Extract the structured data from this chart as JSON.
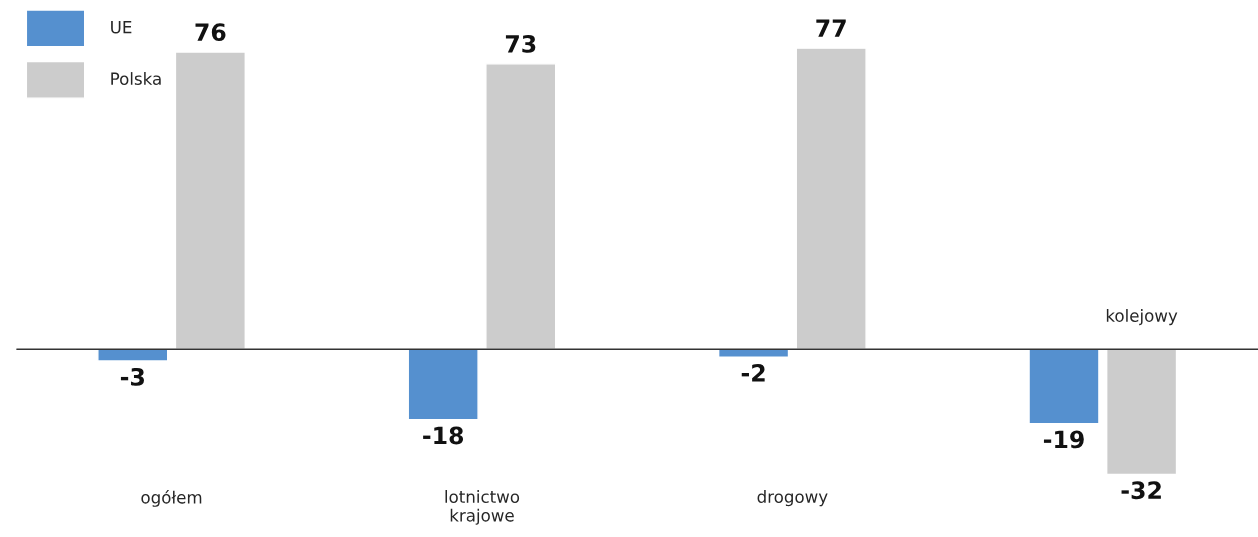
{
  "chart_data": {
    "type": "bar",
    "categories": [
      "ogółem",
      "lotnictwo\nkrajowe",
      "drogowy",
      "kolejowy"
    ],
    "series": [
      {
        "name": "UE",
        "color": "#5590cf",
        "values": [
          -3,
          -18,
          -2,
          -19
        ]
      },
      {
        "name": "Polska",
        "color": "#cccccc",
        "values": [
          76,
          73,
          77,
          -32
        ]
      }
    ],
    "data_labels": true,
    "legend": "top left"
  }
}
